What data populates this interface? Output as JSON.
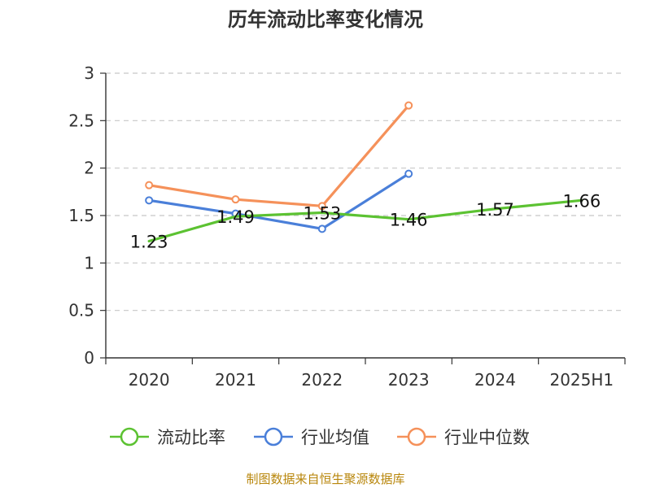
{
  "chart_data": {
    "type": "line",
    "title": "历年流动比率变化情况",
    "categories": [
      "2020",
      "2021",
      "2022",
      "2023",
      "2024",
      "2025H1"
    ],
    "ylim": [
      0,
      3
    ],
    "yticks": [
      "0",
      "0.5",
      "1",
      "1.5",
      "2",
      "2.5",
      "3"
    ],
    "grid": true,
    "legend_position": "bottom",
    "series": [
      {
        "name": "流动比率",
        "color": "#5cc232",
        "values": [
          1.23,
          1.49,
          1.53,
          1.46,
          1.57,
          1.66
        ],
        "labels": [
          "1.23",
          "1.49",
          "1.53",
          "1.46",
          "1.57",
          "1.66"
        ]
      },
      {
        "name": "行业均值",
        "color": "#4a7fd9",
        "values": [
          1.66,
          1.52,
          1.36,
          1.94,
          null,
          null
        ]
      },
      {
        "name": "行业中位数",
        "color": "#f5915a",
        "values": [
          1.82,
          1.67,
          1.6,
          2.66,
          null,
          null
        ]
      }
    ],
    "source_note": "制图数据来自恒生聚源数据库"
  }
}
